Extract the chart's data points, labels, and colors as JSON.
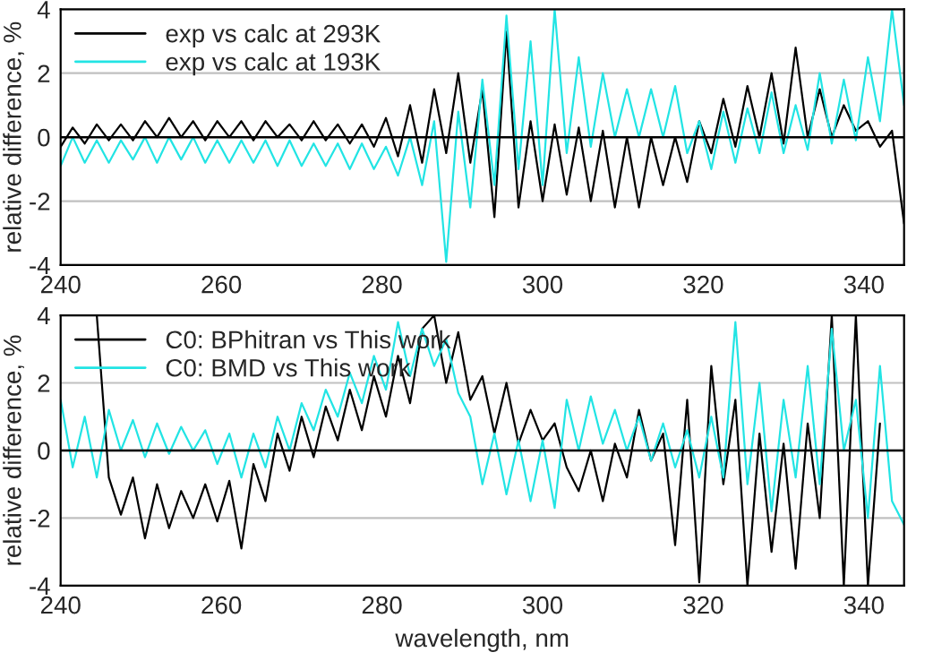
{
  "chart_data": [
    {
      "type": "line",
      "ylabel": "relative difference, %",
      "xlim": [
        240,
        345
      ],
      "ylim": [
        -4,
        4
      ],
      "xticks": [
        240,
        260,
        280,
        300,
        320,
        340
      ],
      "yticks": [
        -4,
        -2,
        0,
        2,
        4
      ],
      "grid": "y",
      "legend": "top left",
      "line_style": "solid",
      "ref_lines": [
        {
          "axis": "y",
          "value": 0,
          "color": "#000000"
        }
      ],
      "x": [
        240,
        241.5,
        243,
        244.5,
        246,
        247.5,
        249,
        250.5,
        252,
        253.5,
        255,
        256.5,
        258,
        259.5,
        261,
        262.5,
        264,
        265.5,
        267,
        268.5,
        270,
        271.5,
        273,
        274.5,
        276,
        277.5,
        279,
        280.5,
        282,
        283.5,
        285,
        286.5,
        288,
        289.5,
        291,
        292.5,
        294,
        295.5,
        297,
        298.5,
        300,
        301.5,
        303,
        304.5,
        306,
        307.5,
        309,
        310.5,
        312,
        313.5,
        315,
        316.5,
        318,
        319.5,
        321,
        322.5,
        324,
        325.5,
        327,
        328.5,
        330,
        331.5,
        333,
        334.5,
        336,
        337.5,
        339,
        340.5,
        342,
        343.5,
        345
      ],
      "series": [
        {
          "name": "exp vs calc at 293K",
          "color": "#000000",
          "values": [
            -0.3,
            0.3,
            -0.2,
            0.4,
            -0.1,
            0.4,
            -0.1,
            0.5,
            0,
            0.6,
            0,
            0.5,
            -0.1,
            0.5,
            0,
            0.5,
            -0.1,
            0.5,
            0,
            0.4,
            -0.1,
            0.5,
            -0.1,
            0.4,
            -0.2,
            0.4,
            -0.3,
            0.6,
            -0.6,
            1.0,
            -0.8,
            1.5,
            -0.5,
            2.0,
            -0.8,
            1.5,
            -2.5,
            3.3,
            -2.2,
            0.5,
            -2.0,
            0.4,
            -1.8,
            0.3,
            -2.0,
            0.2,
            -2.2,
            0,
            -2.2,
            0,
            -1.5,
            0,
            -1.4,
            0.5,
            -0.5,
            1.2,
            -0.3,
            1.6,
            0,
            2.0,
            -0.2,
            2.8,
            0,
            1.5,
            0,
            1.0,
            0.2,
            0.5,
            -0.3,
            0.2,
            -2.7
          ]
        },
        {
          "name": "exp vs calc at 193K",
          "color": "#22e4e4",
          "values": [
            -0.9,
            0,
            -0.8,
            -0.1,
            -0.8,
            -0.1,
            -0.7,
            0,
            -0.8,
            0,
            -0.7,
            0,
            -0.8,
            -0.1,
            -0.8,
            -0.1,
            -0.8,
            -0.1,
            -0.9,
            -0.1,
            -0.9,
            -0.2,
            -0.9,
            -0.2,
            -1.0,
            -0.2,
            -1.0,
            -0.3,
            -1.2,
            0,
            -1.5,
            0.5,
            -3.9,
            0.8,
            -2.2,
            1.8,
            -1.5,
            3.8,
            -1.0,
            3.0,
            -1.5,
            4.0,
            -0.5,
            2.5,
            -0.3,
            2.0,
            0,
            1.5,
            0,
            1.5,
            0,
            1.6,
            -0.5,
            0.5,
            -1.0,
            0.8,
            -0.8,
            0.9,
            -0.5,
            1.4,
            -0.5,
            1.0,
            -0.4,
            2.0,
            -0.2,
            1.8,
            -0.1,
            2.5,
            0.5,
            4.0,
            1.0
          ]
        }
      ]
    },
    {
      "type": "line",
      "xlabel": "wavelength, nm",
      "ylabel": "relative difference, %",
      "xlim": [
        240,
        345
      ],
      "ylim": [
        -4,
        4
      ],
      "xticks": [
        240,
        260,
        280,
        300,
        320,
        340
      ],
      "yticks": [
        -4,
        -2,
        0,
        2,
        4
      ],
      "grid": "y",
      "legend": "top left",
      "line_style": "solid",
      "ref_lines": [
        {
          "axis": "y",
          "value": 0,
          "color": "#000000"
        }
      ],
      "x": [
        240,
        241.5,
        243,
        244.5,
        246,
        247.5,
        249,
        250.5,
        252,
        253.5,
        255,
        256.5,
        258,
        259.5,
        261,
        262.5,
        264,
        265.5,
        267,
        268.5,
        270,
        271.5,
        273,
        274.5,
        276,
        277.5,
        279,
        280.5,
        282,
        283.5,
        285,
        286.5,
        288,
        289.5,
        291,
        292.5,
        294,
        295.5,
        297,
        298.5,
        300,
        301.5,
        303,
        304.5,
        306,
        307.5,
        309,
        310.5,
        312,
        313.5,
        315,
        316.5,
        318,
        319.5,
        321,
        322.5,
        324,
        325.5,
        327,
        328.5,
        330,
        331.5,
        333,
        334.5,
        336,
        337.5,
        339,
        340.5,
        342,
        343.5,
        345
      ],
      "series": [
        {
          "name": "C0: BPhitran vs This work",
          "color": "#000000",
          "values": [
            null,
            null,
            null,
            4,
            -0.8,
            -1.9,
            -0.8,
            -2.6,
            -1.0,
            -2.3,
            -1.2,
            -2.0,
            -1.0,
            -2.1,
            -0.9,
            -2.9,
            -0.4,
            -1.5,
            0.5,
            -0.6,
            1.0,
            -0.2,
            1.3,
            0.3,
            1.8,
            0.6,
            2.2,
            1.0,
            2.8,
            1.4,
            3.6,
            4.0,
            2.0,
            3.5,
            1.5,
            2.2,
            0.5,
            2.0,
            0.2,
            1.2,
            0.3,
            0.8,
            -0.5,
            -1.2,
            0,
            -1.5,
            0.2,
            -0.8,
            1.2,
            -0.3,
            0.5,
            -2.8,
            1.5,
            -3.9,
            2.5,
            -1.0,
            1.5,
            -4.0,
            0.5,
            -3.0,
            0.2,
            -3.5,
            0.8,
            -2.0,
            4.0,
            -4.0,
            4.0,
            -4.0,
            0.8,
            null,
            null
          ]
        },
        {
          "name": "C0: BMD vs This work",
          "color": "#22e4e4",
          "values": [
            1.5,
            -0.5,
            1.0,
            -0.8,
            1.2,
            0,
            0.9,
            -0.2,
            0.8,
            -0.1,
            0.7,
            0,
            0.6,
            -0.4,
            0.5,
            -0.8,
            0.5,
            -0.5,
            1.0,
            0,
            1.4,
            0.6,
            1.8,
            1.0,
            2.3,
            1.4,
            2.8,
            1.8,
            3.8,
            2.2,
            3.6,
            2.5,
            3.3,
            1.7,
            1.0,
            -1.0,
            0.5,
            -1.3,
            0.3,
            -1.5,
            0.3,
            -1.7,
            1.5,
            0,
            1.6,
            0.2,
            1.2,
            0,
            1.0,
            -0.3,
            0.8,
            -0.5,
            0.6,
            -0.8,
            1.0,
            -0.8,
            3.8,
            -1.0,
            2.0,
            -1.8,
            1.5,
            -0.8,
            2.5,
            -1.0,
            3.6,
            0,
            1.5,
            -2.0,
            2.5,
            -1.5,
            -2.2
          ]
        }
      ]
    }
  ]
}
